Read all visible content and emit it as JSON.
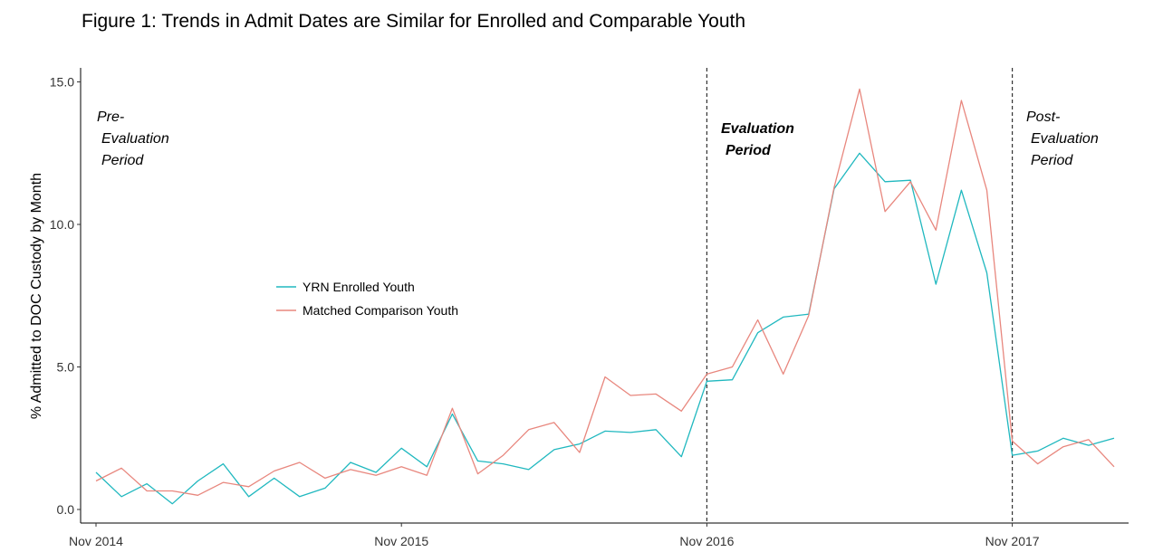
{
  "chart_data": {
    "type": "line",
    "title": "Figure 1: Trends in Admit Dates are Similar for Enrolled and Comparable Youth",
    "xlabel": "",
    "ylabel": "% Admitted to DOC Custody by Month",
    "ylim": [
      0,
      15
    ],
    "yticks": [
      0.0,
      5.0,
      10.0,
      15.0
    ],
    "ytick_labels": [
      "0.0",
      "5.0",
      "10.0",
      "15.0"
    ],
    "xtick_labels": [
      "Nov 2014",
      "Nov 2015",
      "Nov 2016",
      "Nov 2017"
    ],
    "x": [
      "2014-11",
      "2014-12",
      "2015-01",
      "2015-02",
      "2015-03",
      "2015-04",
      "2015-05",
      "2015-06",
      "2015-07",
      "2015-08",
      "2015-09",
      "2015-10",
      "2015-11",
      "2015-12",
      "2016-01",
      "2016-02",
      "2016-03",
      "2016-04",
      "2016-05",
      "2016-06",
      "2016-07",
      "2016-08",
      "2016-09",
      "2016-10",
      "2016-11",
      "2016-12",
      "2017-01",
      "2017-02",
      "2017-03",
      "2017-04",
      "2017-05",
      "2017-06",
      "2017-07",
      "2017-08",
      "2017-09",
      "2017-10",
      "2017-11",
      "2017-12",
      "2018-01",
      "2018-02",
      "2018-03",
      "2018-04"
    ],
    "grid": false,
    "legend_position": "center-left",
    "vlines": [
      "2016-11",
      "2017-11"
    ],
    "annotations": [
      {
        "lines": [
          "Pre-",
          "Evaluation",
          "Period"
        ],
        "bold": false
      },
      {
        "lines": [
          "Evaluation",
          "Period"
        ],
        "bold": true
      },
      {
        "lines": [
          "Post-",
          "Evaluation",
          "Period"
        ],
        "bold": false
      }
    ],
    "series": [
      {
        "name": "YRN Enrolled Youth",
        "color": "#20B8BF",
        "values": [
          1.3,
          0.45,
          0.9,
          0.2,
          1.0,
          1.6,
          0.45,
          1.1,
          0.45,
          0.75,
          1.65,
          1.3,
          2.15,
          1.5,
          3.35,
          1.7,
          1.6,
          1.4,
          2.1,
          2.3,
          2.75,
          2.7,
          2.8,
          1.85,
          4.5,
          4.55,
          6.2,
          6.75,
          6.85,
          11.25,
          12.5,
          11.5,
          11.55,
          7.9,
          11.2,
          8.3,
          1.9,
          2.05,
          2.5,
          2.25,
          2.5,
          null
        ]
      },
      {
        "name": "Matched Comparison Youth",
        "color": "#E8877E",
        "values": [
          1.0,
          1.45,
          0.65,
          0.65,
          0.5,
          0.95,
          0.8,
          1.35,
          1.65,
          1.1,
          1.4,
          1.2,
          1.5,
          1.2,
          3.55,
          1.25,
          1.9,
          2.8,
          3.05,
          2.0,
          4.65,
          4.0,
          4.05,
          3.45,
          4.75,
          5.0,
          6.65,
          4.75,
          6.8,
          11.3,
          14.75,
          10.45,
          11.5,
          9.8,
          14.35,
          11.2,
          2.4,
          1.6,
          2.2,
          2.45,
          1.5,
          null
        ]
      }
    ]
  }
}
